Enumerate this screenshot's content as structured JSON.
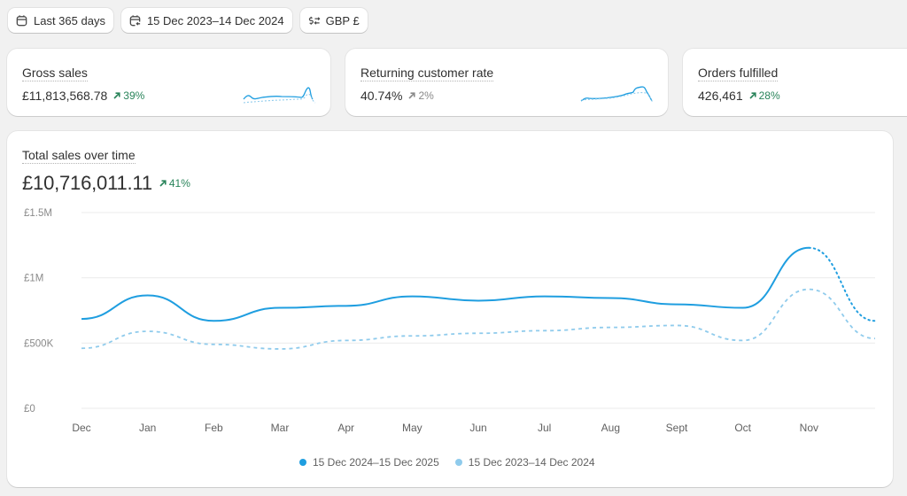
{
  "filters": {
    "period": "Last 365 days",
    "comparison": "15 Dec 2023–14 Dec 2024",
    "currency": "GBP £"
  },
  "kpis": [
    {
      "title": "Gross sales",
      "value": "£11,813,568.78",
      "delta": "39%",
      "trend": "up"
    },
    {
      "title": "Returning customer rate",
      "value": "40.74%",
      "delta": "2%",
      "trend": "neutral"
    },
    {
      "title": "Orders fulfilled",
      "value": "426,461",
      "delta": "28%",
      "trend": "up"
    }
  ],
  "main": {
    "title": "Total sales over time",
    "value": "£10,716,011.11",
    "delta": "41%"
  },
  "colors": {
    "current": "#1f9ee0",
    "previous": "#8fcbec",
    "positive": "#29845a",
    "grid": "#ebebeb"
  },
  "chart_data": {
    "type": "line",
    "title": "Total sales over time",
    "xlabel": "",
    "ylabel": "",
    "categories": [
      "Dec",
      "Jan",
      "Feb",
      "Mar",
      "Apr",
      "May",
      "Jun",
      "Jul",
      "Aug",
      "Sept",
      "Oct",
      "Nov",
      ""
    ],
    "ylim": [
      0,
      1500000
    ],
    "yticks": [
      {
        "value": 0,
        "label": "£0"
      },
      {
        "value": 500000,
        "label": "£500K"
      },
      {
        "value": 1000000,
        "label": "£1M"
      },
      {
        "value": 1500000,
        "label": "£1.5M"
      }
    ],
    "grid": true,
    "legend_position": "bottom",
    "series": [
      {
        "name": "15 Dec 2024–15 Dec 2025",
        "style": "solid",
        "incomplete_from_index": 11,
        "values": [
          685000,
          865000,
          670000,
          770000,
          785000,
          858000,
          825000,
          858000,
          845000,
          797000,
          770000,
          1230000,
          670000
        ]
      },
      {
        "name": "15 Dec 2023–14 Dec 2024",
        "style": "dashed",
        "values": [
          460000,
          590000,
          490000,
          455000,
          520000,
          555000,
          575000,
          595000,
          620000,
          635000,
          520000,
          912000,
          535000
        ]
      }
    ]
  }
}
